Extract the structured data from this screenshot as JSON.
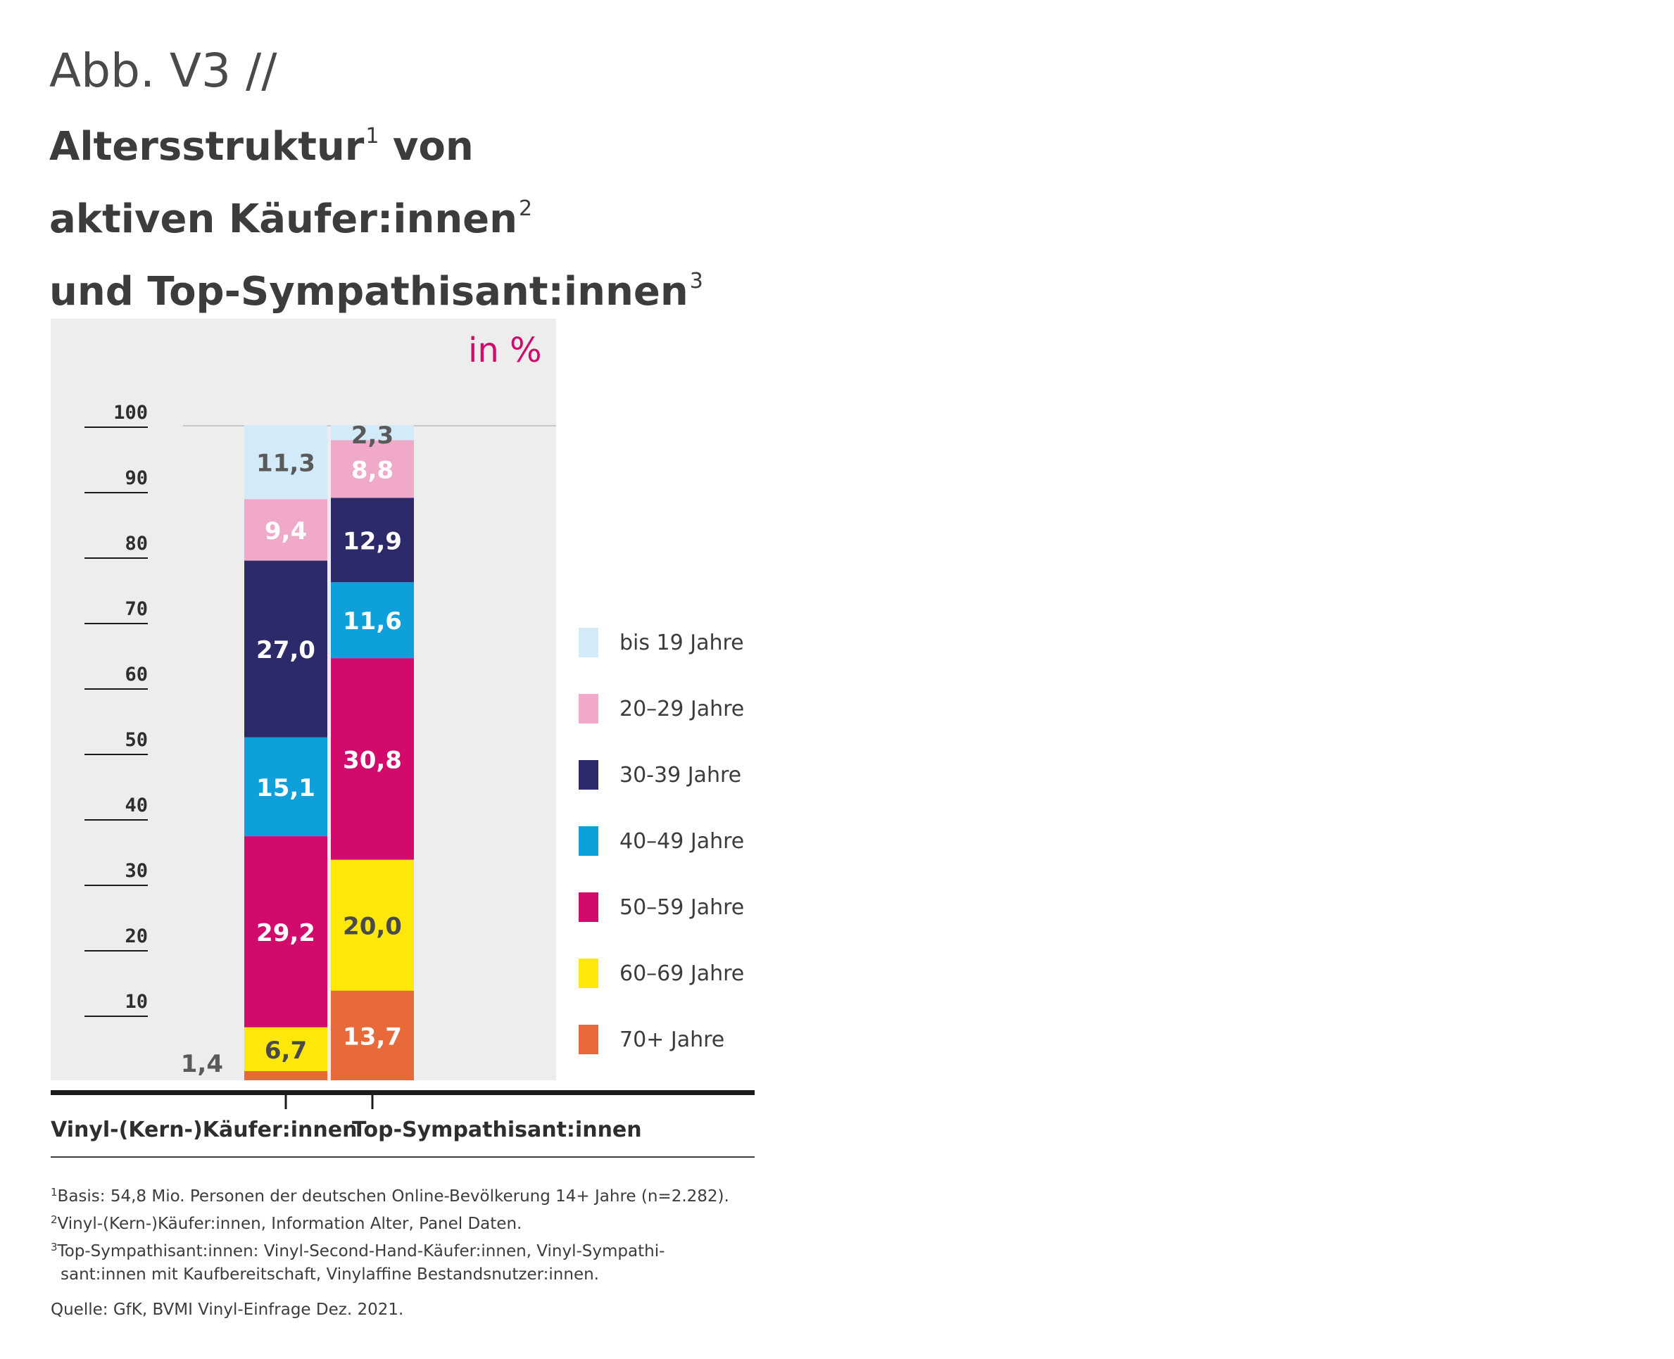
{
  "header": {
    "abb": "Abb. V3 //",
    "title_line1": "Altersstruktur",
    "title_line1_sup": "1",
    "title_line1_rest": " von",
    "title_line2": "aktiven Käufer:innen",
    "title_line2_sup": "2",
    "title_line3": "und Top-Sympathisant:innen",
    "title_line3_sup": "3"
  },
  "unit": "in %",
  "chart_data": {
    "type": "bar",
    "stacked": true,
    "categories": [
      "Vinyl-(Kern-)Käufer:innen",
      "Top-Sympathisant:innen"
    ],
    "series": [
      {
        "name": "70+ Jahre",
        "color": "#e8693a",
        "values": [
          1.4,
          13.7
        ],
        "label_colors": [
          "#5a5a5a",
          "#ffffff"
        ]
      },
      {
        "name": "60–69 Jahre",
        "color": "#fde80a",
        "values": [
          6.7,
          20.0
        ],
        "label_colors": [
          "#4a4a4a",
          "#4a4a4a"
        ]
      },
      {
        "name": "50–59 Jahre",
        "color": "#d10a6b",
        "values": [
          29.2,
          30.8
        ],
        "label_colors": [
          "#ffffff",
          "#ffffff"
        ]
      },
      {
        "name": "40–49 Jahre",
        "color": "#0ea0db",
        "values": [
          15.1,
          11.6
        ],
        "label_colors": [
          "#ffffff",
          "#ffffff"
        ]
      },
      {
        "name": "30-39 Jahre",
        "color": "#2d2a6c",
        "values": [
          27.0,
          12.9
        ],
        "label_colors": [
          "#ffffff",
          "#ffffff"
        ]
      },
      {
        "name": "20–29 Jahre",
        "color": "#f0a9c8",
        "values": [
          9.4,
          8.8
        ],
        "label_colors": [
          "#ffffff",
          "#ffffff"
        ]
      },
      {
        "name": "bis 19 Jahre",
        "color": "#d3eaf8",
        "values": [
          11.3,
          2.3
        ],
        "label_colors": [
          "#5a5a5a",
          "#5a5a5a"
        ]
      }
    ],
    "data_labels": [
      [
        "1,4",
        "6,7",
        "29,2",
        "15,1",
        "27,0",
        "9,4",
        "11,3"
      ],
      [
        "13,7",
        "20,0",
        "30,8",
        "11,6",
        "12,9",
        "8,8",
        "2,3"
      ]
    ],
    "y_ticks": [
      "10",
      "20",
      "30",
      "40",
      "50",
      "60",
      "70",
      "80",
      "90",
      "100"
    ],
    "ylim": [
      0,
      100
    ],
    "legend_position": "right",
    "legend_order": [
      "bis 19 Jahre",
      "20–29 Jahre",
      "30-39 Jahre",
      "40–49 Jahre",
      "50–59 Jahre",
      "60–69 Jahre",
      "70+ Jahre"
    ]
  },
  "footnotes": {
    "fn1_sup": "1",
    "fn1": "Basis: 54,8 Mio. Personen der deutschen Online-Bevölkerung 14+ Jahre (n=2.282).",
    "fn2_sup": "2",
    "fn2": "Vinyl-(Kern-)Käufer:innen, Information Alter, Panel Daten.",
    "fn3_sup": "3",
    "fn3a": "Top-Sympathisant:innen: Vinyl-Second-Hand-Käufer:innen, Vinyl-Sympathi-",
    "fn3b": "sant:innen mit Kaufbereitschaft, Vinylaffine Bestandsnutzer:innen."
  },
  "source": "Quelle: GfK, BVMI Vinyl-Einfrage Dez. 2021."
}
